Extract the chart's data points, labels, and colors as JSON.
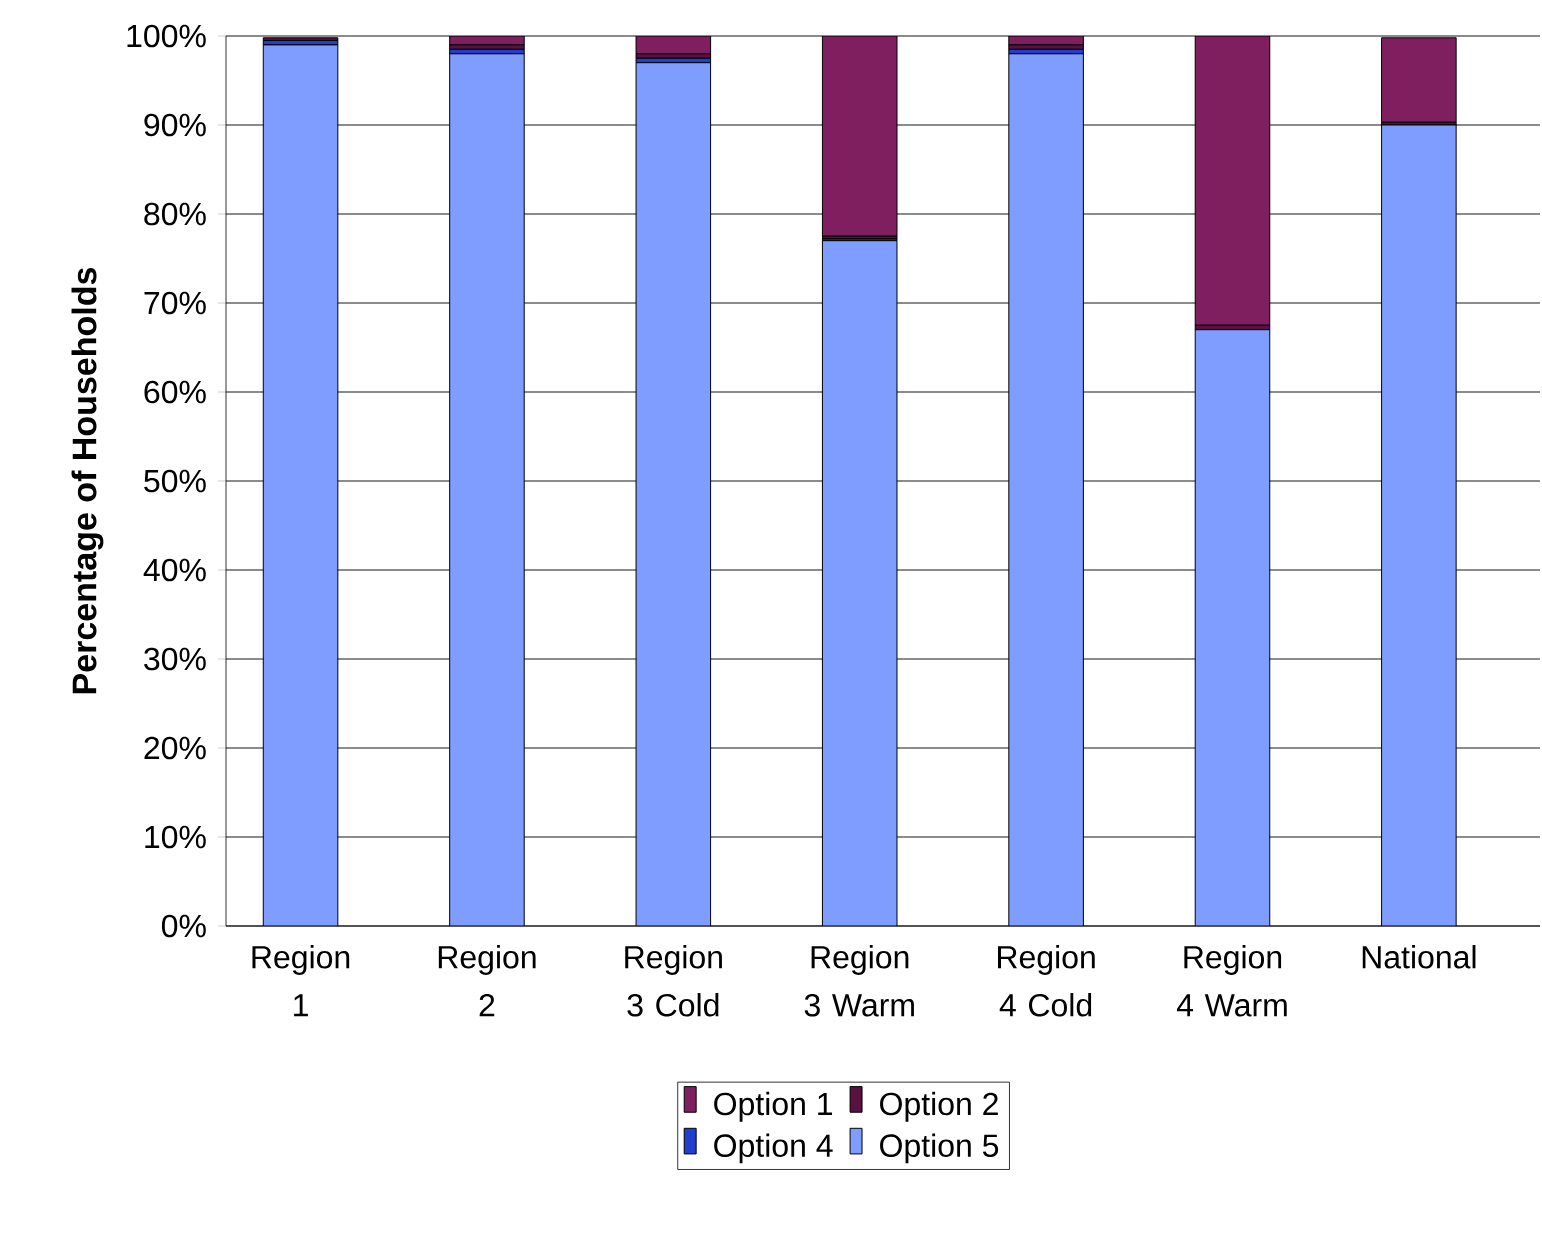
{
  "chart_data": {
    "type": "bar",
    "stacked": true,
    "ylabel": "Percentage of Households",
    "categories": [
      "Region 1",
      "Region 2",
      "Region 3 Cold",
      "Region 3 Warm",
      "Region 4 Cold",
      "Region 4 Warm",
      "National"
    ],
    "series": [
      {
        "name": "Option 5",
        "color": "#7f9cff",
        "values": [
          99,
          98,
          97,
          77,
          98,
          67,
          90
        ]
      },
      {
        "name": "Option 4",
        "color": "#1f3fcc",
        "values": [
          0.5,
          0.5,
          0.5,
          0.2,
          0.5,
          0,
          null
        ]
      },
      {
        "name": "Option 2",
        "color": "#5a1040",
        "values": [
          0.3,
          0.5,
          0.5,
          0.3,
          0.5,
          0.5,
          0.3
        ]
      },
      {
        "name": "Option 1",
        "color": "#801f60",
        "values": [
          null,
          1,
          2,
          22.5,
          1,
          32.5,
          9.5
        ]
      }
    ],
    "ylim": [
      0,
      100
    ],
    "yticks": [
      {
        "value": 0,
        "label": "0%"
      },
      {
        "value": 10,
        "label": "10%"
      },
      {
        "value": 20,
        "label": "20%"
      },
      {
        "value": 30,
        "label": "30%"
      },
      {
        "value": 40,
        "label": "40%"
      },
      {
        "value": 50,
        "label": "50%"
      },
      {
        "value": 60,
        "label": "60%"
      },
      {
        "value": 70,
        "label": "70%"
      },
      {
        "value": 80,
        "label": "80%"
      },
      {
        "value": 90,
        "label": "90%"
      },
      {
        "value": 100,
        "label": "100%"
      }
    ],
    "grid": "y",
    "legend": "bottom"
  }
}
